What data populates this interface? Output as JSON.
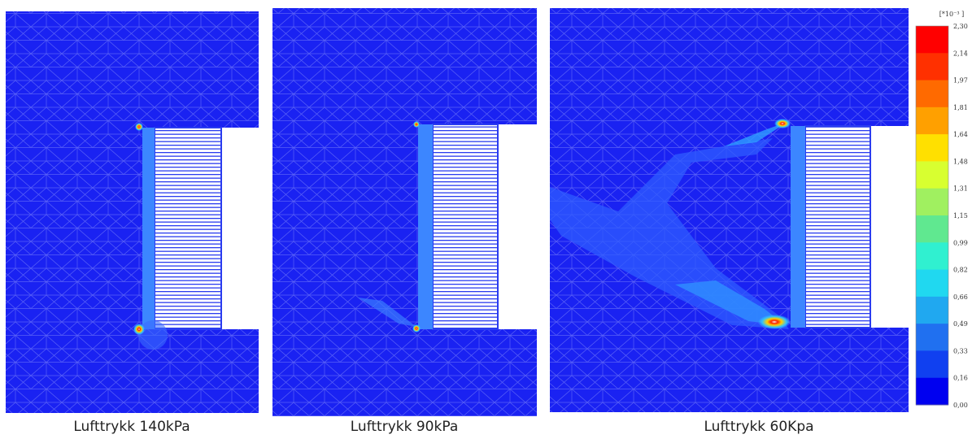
{
  "panels": [
    {
      "caption": "Lufttrykk 140kPa"
    },
    {
      "caption": "Lufttrykk 90kPa"
    },
    {
      "caption": "Lufttrykk 60Kpa"
    }
  ],
  "colorbar": {
    "unit": "[*10⁻³ ]",
    "labels": [
      "2,30",
      "2,14",
      "1,97",
      "1,81",
      "1,64",
      "1,48",
      "1,31",
      "1,15",
      "0,99",
      "0,82",
      "0,66",
      "0,49",
      "0,33",
      "0,16",
      "0,00"
    ]
  }
}
